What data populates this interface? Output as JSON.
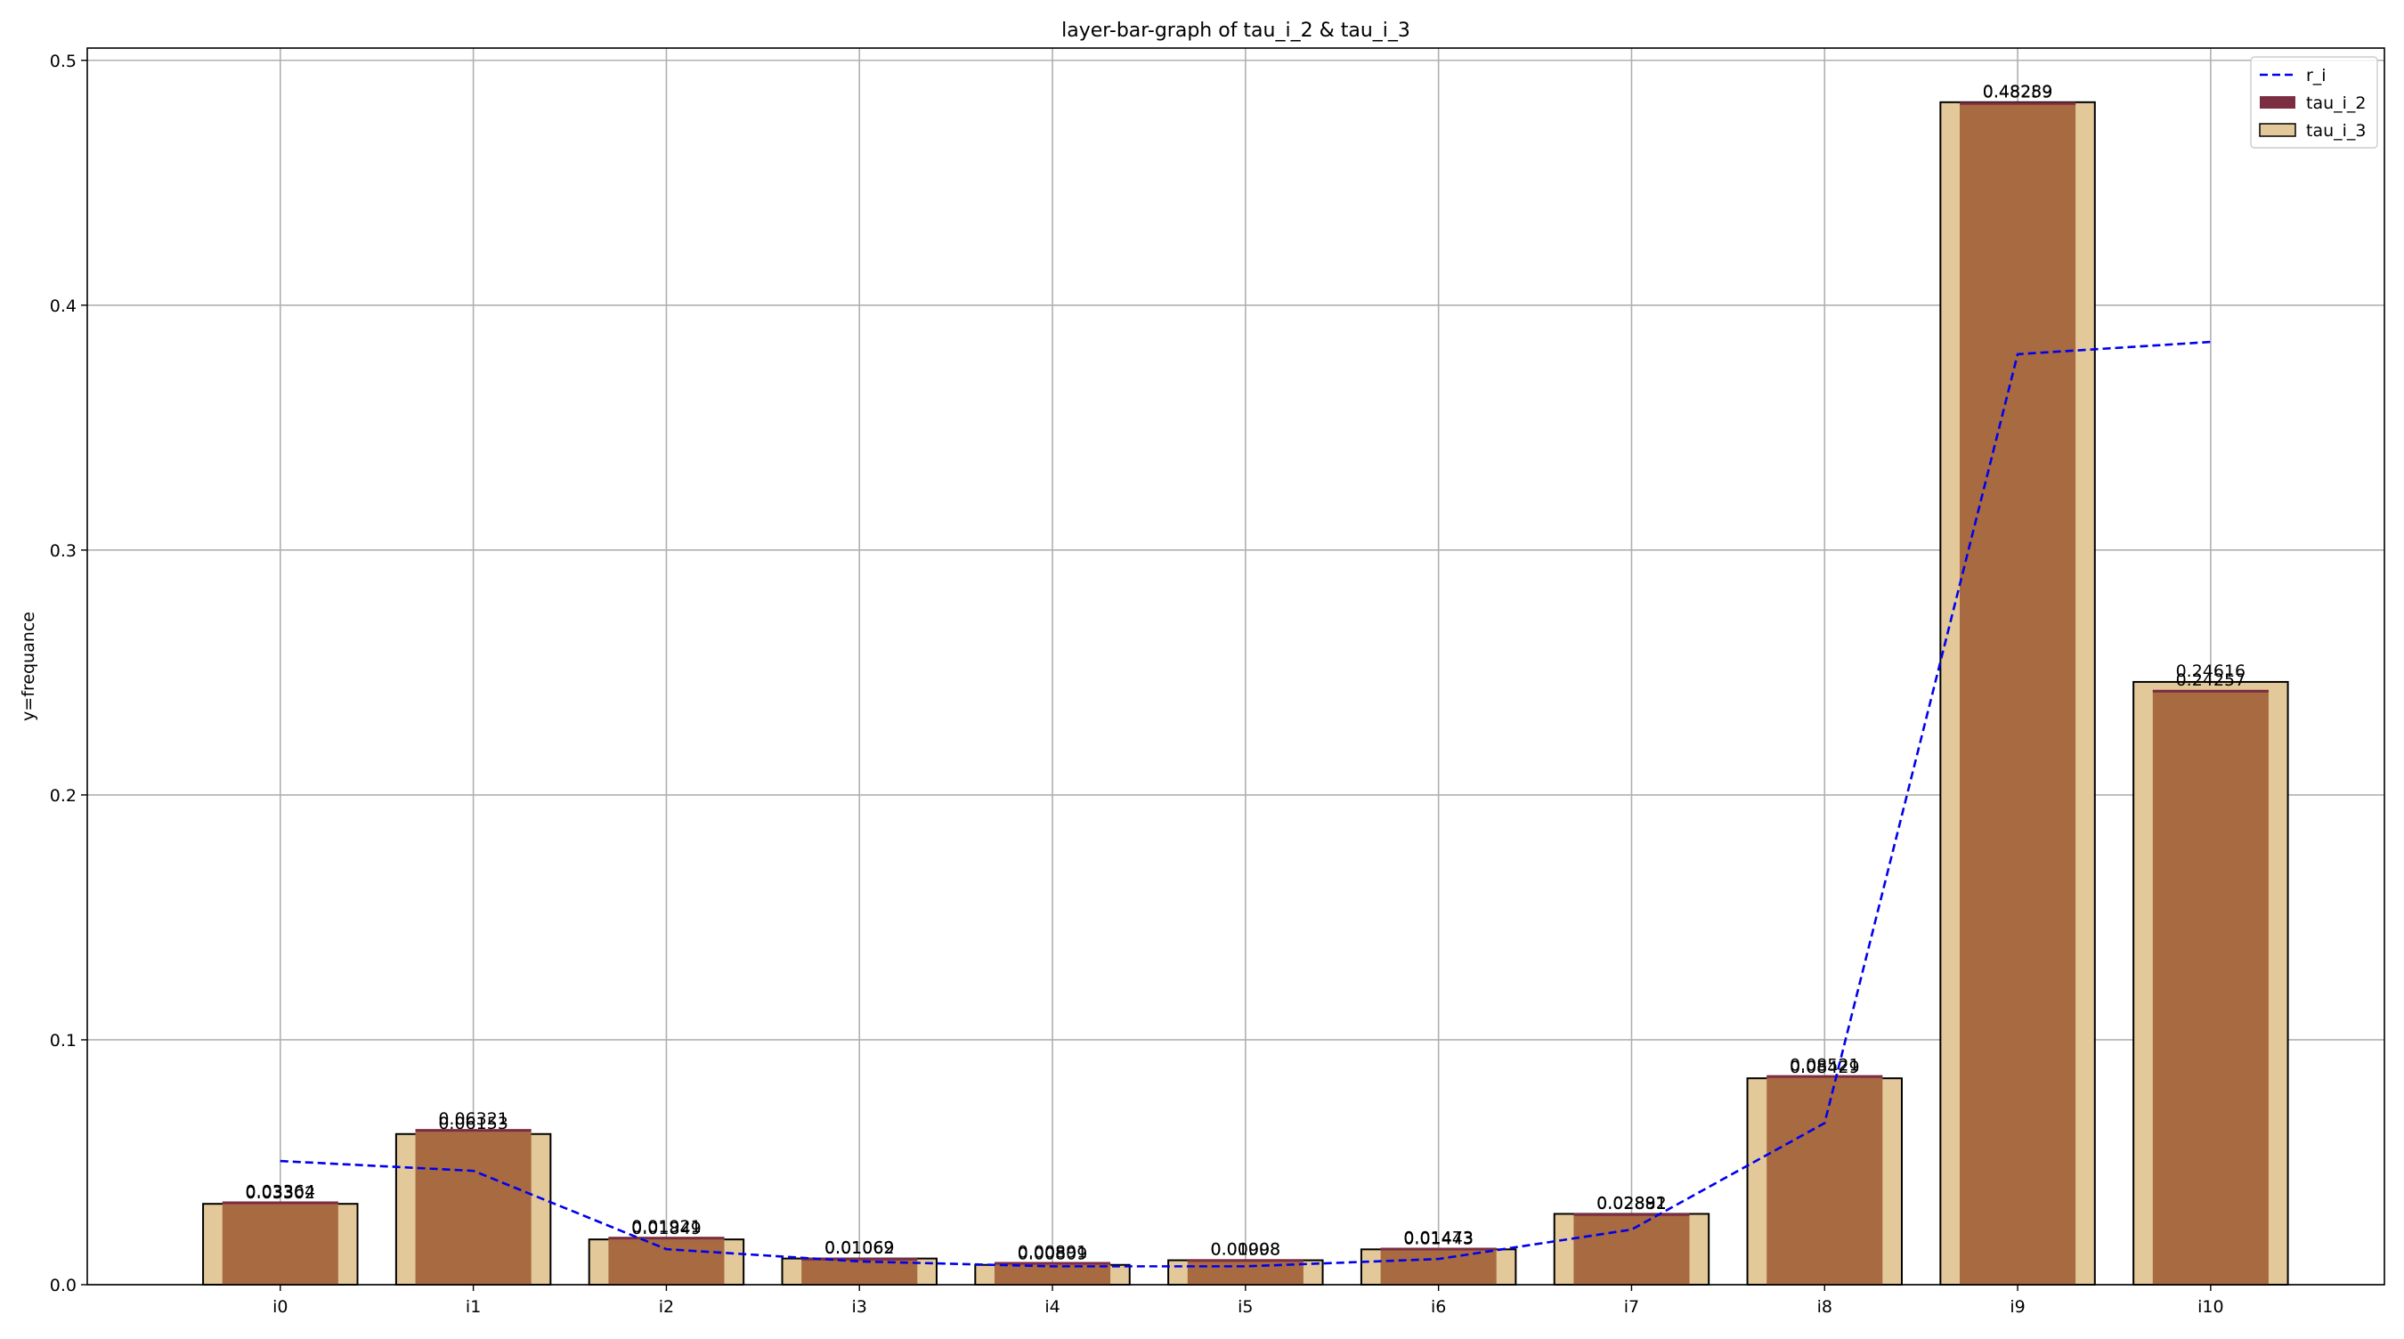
{
  "chart_data": {
    "type": "bar",
    "title": "layer-bar-graph of tau_i_2 & tau_i_3",
    "xlabel": "",
    "ylabel": "y=frequance",
    "categories": [
      "i0",
      "i1",
      "i2",
      "i3",
      "i4",
      "i5",
      "i6",
      "i7",
      "i8",
      "i9",
      "i10"
    ],
    "ylim": [
      0,
      0.505
    ],
    "yticks": [
      0.0,
      0.1,
      0.2,
      0.3,
      0.4,
      0.5
    ],
    "ytick_labels": [
      "0.0",
      "0.1",
      "0.2",
      "0.3",
      "0.4",
      "0.5"
    ],
    "grid": true,
    "legend_position": "top-right",
    "series": [
      {
        "name": "tau_i_3",
        "kind": "bar",
        "color": "#e3c999",
        "edgecolor": "#000000",
        "values": [
          0.03302,
          0.06153,
          0.01849,
          0.01069,
          0.00809,
          0.00998,
          0.01443,
          0.02892,
          0.08429,
          0.48289,
          0.24616
        ],
        "labels": [
          "0.03302",
          "0.06153",
          "0.01849",
          "0.01069",
          "0.00809",
          "0.00998",
          "0.01443",
          "0.02892",
          "0.08429",
          "0.48289",
          "0.24616"
        ]
      },
      {
        "name": "tau_i_2",
        "kind": "bar",
        "color": "#7b2d42",
        "values": [
          0.03364,
          0.06321,
          0.01921,
          0.01062,
          0.00891,
          0.01008,
          0.01473,
          0.02881,
          0.08521,
          0.48259,
          0.24257
        ],
        "labels": [
          "0.03364",
          "0.06321",
          "0.01921",
          "0.01062",
          "0.00891",
          "0.01008",
          "0.01473",
          "0.02881",
          "0.08521",
          "0.48259",
          "0.24257"
        ]
      },
      {
        "name": "r_i",
        "kind": "line",
        "style": "dashed",
        "color": "#0000ee",
        "values": [
          0.0505,
          0.0465,
          0.0145,
          0.0095,
          0.0075,
          0.0075,
          0.0105,
          0.0225,
          0.066,
          0.38,
          0.385
        ]
      }
    ],
    "overlap_color": "#a86a40"
  }
}
